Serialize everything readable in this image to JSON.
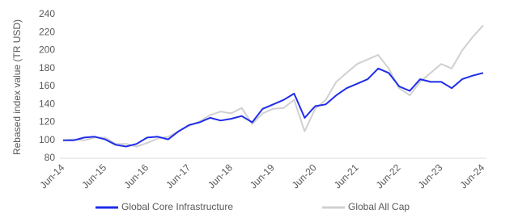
{
  "chart_data": {
    "type": "line",
    "y_label": "Rebased index value (TR USD)",
    "categories": [
      "Jun-14",
      null,
      null,
      null,
      "Jun-15",
      null,
      null,
      null,
      "Jun-16",
      null,
      null,
      null,
      "Jun-17",
      null,
      null,
      null,
      "Jun-18",
      null,
      null,
      null,
      "Jun-19",
      null,
      null,
      null,
      "Jun-20",
      null,
      null,
      null,
      "Jun-21",
      null,
      null,
      null,
      "Jun-22",
      null,
      null,
      null,
      "Jun-23",
      null,
      null,
      null,
      "Jun-24"
    ],
    "series": [
      {
        "name": "Global Core Infrastructure",
        "color": "#1f2de8",
        "values": [
          100,
          100,
          103,
          104,
          101,
          95,
          93,
          96,
          103,
          104,
          101,
          110,
          117,
          120,
          125,
          122,
          124,
          127,
          120,
          135,
          140,
          145,
          152,
          125,
          138,
          140,
          150,
          158,
          163,
          168,
          180,
          175,
          160,
          155,
          168,
          165,
          165,
          158,
          168,
          172,
          175
        ]
      },
      {
        "name": "Global All Cap",
        "color": "#d0d0d0",
        "values": [
          100,
          101,
          100,
          103,
          103,
          96,
          96,
          93,
          97,
          102,
          104,
          110,
          116,
          121,
          128,
          132,
          130,
          136,
          118,
          130,
          135,
          136,
          145,
          110,
          135,
          145,
          165,
          175,
          185,
          190,
          195,
          180,
          158,
          150,
          165,
          175,
          185,
          180,
          200,
          215,
          228
        ]
      }
    ],
    "ylim": [
      80,
      240
    ],
    "yticks": [
      80,
      100,
      120,
      140,
      160,
      180,
      200,
      220,
      240
    ],
    "legend": "bottom"
  }
}
